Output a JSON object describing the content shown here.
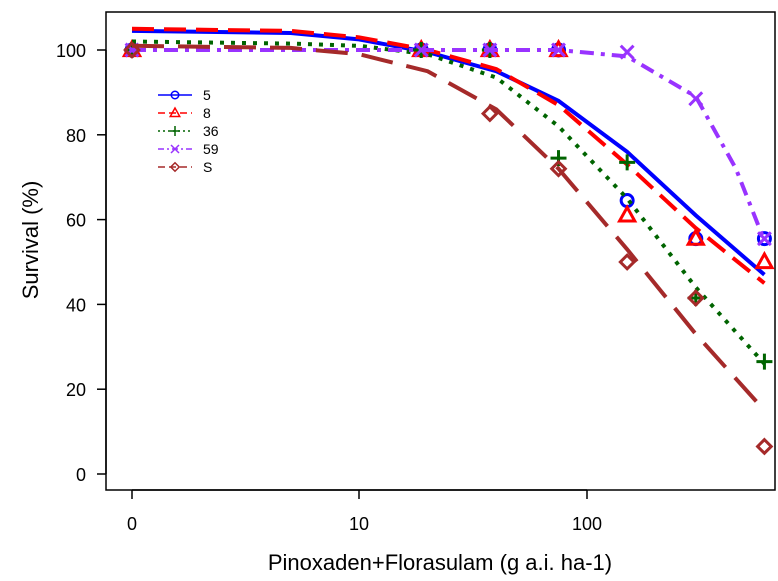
{
  "chart_data": {
    "type": "line",
    "xlabel": "Pinoxaden+Florasulam (g a.i. ha-1)",
    "ylabel": "Survival (%)",
    "x_scale": "log-like (0 shown at left)",
    "x_tick_labels": [
      "0",
      "10",
      "100"
    ],
    "y_tick_labels": [
      "0",
      "20",
      "40",
      "60",
      "80",
      "100"
    ],
    "ylim": [
      0,
      105
    ],
    "legend_position": "upper-left",
    "series": [
      {
        "name": "5",
        "color": "#0000ff",
        "marker": "circle",
        "dash": "solid",
        "points": [
          [
            0,
            100
          ],
          [
            18.75,
            100
          ],
          [
            37.5,
            100
          ],
          [
            75,
            100
          ],
          [
            150,
            64.5
          ],
          [
            300,
            55.5
          ],
          [
            600,
            55.5
          ]
        ],
        "fit": [
          [
            0,
            104.5
          ],
          [
            5,
            104
          ],
          [
            10,
            102.5
          ],
          [
            20,
            99.5
          ],
          [
            40,
            95
          ],
          [
            75,
            88
          ],
          [
            150,
            76
          ],
          [
            300,
            61
          ],
          [
            600,
            47
          ]
        ]
      },
      {
        "name": "8",
        "color": "#ff0000",
        "marker": "triangle",
        "dash": "dashed",
        "points": [
          [
            0,
            100
          ],
          [
            18.75,
            100
          ],
          [
            37.5,
            100
          ],
          [
            75,
            100
          ],
          [
            150,
            61
          ],
          [
            300,
            55.5
          ],
          [
            600,
            50
          ]
        ],
        "fit": [
          [
            0,
            105
          ],
          [
            5,
            104.5
          ],
          [
            10,
            103
          ],
          [
            20,
            100
          ],
          [
            40,
            95.5
          ],
          [
            75,
            87
          ],
          [
            150,
            73
          ],
          [
            300,
            58
          ],
          [
            600,
            45
          ]
        ]
      },
      {
        "name": "36",
        "color": "#006400",
        "marker": "plus",
        "dash": "dotted",
        "points": [
          [
            0,
            100
          ],
          [
            18.75,
            100
          ],
          [
            37.5,
            100
          ],
          [
            75,
            74.5
          ],
          [
            150,
            73.5
          ],
          [
            300,
            41.5
          ],
          [
            600,
            26.5
          ]
        ],
        "fit": [
          [
            0,
            102
          ],
          [
            5,
            101.5
          ],
          [
            10,
            101
          ],
          [
            20,
            99
          ],
          [
            40,
            93.5
          ],
          [
            75,
            82
          ],
          [
            150,
            65
          ],
          [
            300,
            44
          ],
          [
            600,
            26
          ]
        ]
      },
      {
        "name": "59",
        "color": "#9933ff",
        "marker": "x",
        "dash": "dashdot",
        "points": [
          [
            0,
            100
          ],
          [
            18.75,
            100
          ],
          [
            37.5,
            100
          ],
          [
            75,
            100
          ],
          [
            150,
            99.5
          ],
          [
            300,
            88.5
          ],
          [
            600,
            55.5
          ]
        ],
        "fit": [
          [
            0,
            100
          ],
          [
            10,
            100
          ],
          [
            20,
            100
          ],
          [
            40,
            100
          ],
          [
            75,
            100
          ],
          [
            150,
            98.5
          ],
          [
            300,
            89
          ],
          [
            450,
            72
          ],
          [
            600,
            55
          ]
        ]
      },
      {
        "name": "S",
        "color": "#a52a2a",
        "marker": "diamond",
        "dash": "longdash",
        "points": [
          [
            0,
            100
          ],
          [
            37.5,
            85
          ],
          [
            75,
            72
          ],
          [
            150,
            50
          ],
          [
            300,
            41.5
          ],
          [
            600,
            6.5
          ]
        ],
        "fit": [
          [
            0,
            101
          ],
          [
            5,
            100.5
          ],
          [
            10,
            99
          ],
          [
            20,
            95
          ],
          [
            40,
            86
          ],
          [
            75,
            72
          ],
          [
            150,
            53
          ],
          [
            300,
            33
          ],
          [
            600,
            15
          ]
        ]
      }
    ]
  }
}
